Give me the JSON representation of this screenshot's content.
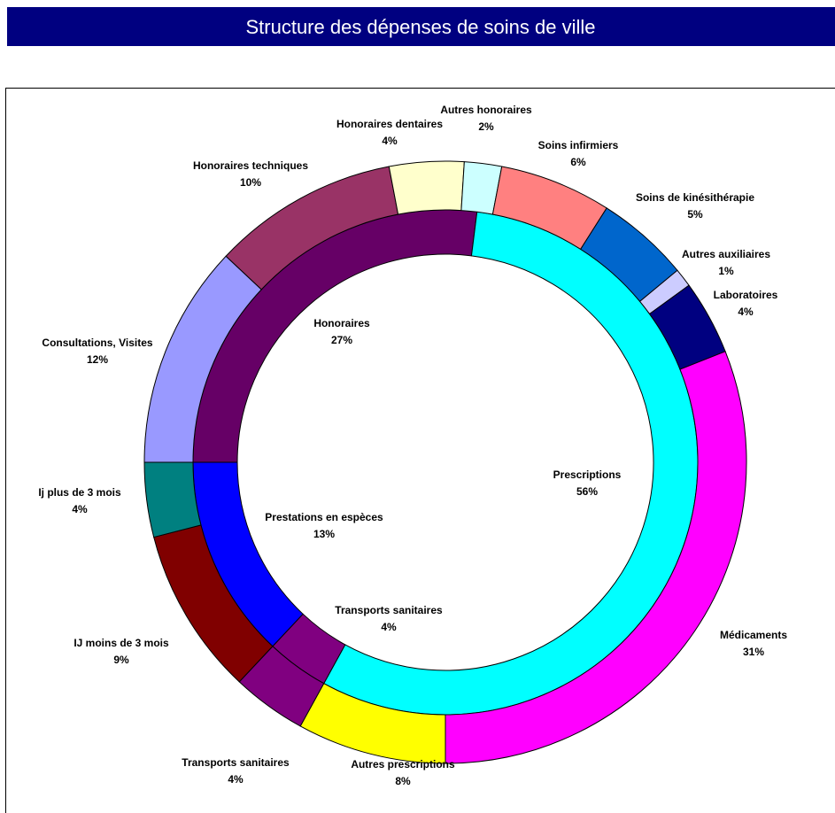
{
  "chart_data": {
    "type": "doughnut",
    "title": "Structure des dépenses de soins de ville",
    "start_angle": 270,
    "rings": [
      {
        "categories": [
          "Honoraires",
          "Prescriptions",
          "Transports sanitaires",
          "Prestations en espèces"
        ],
        "values": [
          27,
          56,
          4,
          13
        ],
        "value_labels": [
          "27%",
          "56%",
          "4%",
          "13%"
        ],
        "colors": [
          "#660066",
          "#00ffff",
          "#800080",
          "#0000ff"
        ]
      },
      {
        "categories": [
          "Consultations, Visites",
          "Honoraires techniques",
          "Honoraires dentaires",
          "Autres honoraires",
          "Soins infirmiers",
          "Soins de kinésithérapie",
          "Autres auxiliaires",
          "Laboratoires",
          "Médicaments",
          "Autres prescriptions",
          "Transports sanitaires",
          "IJ moins de 3 mois",
          "Ij plus de 3 mois"
        ],
        "values": [
          12,
          10,
          4,
          2,
          6,
          5,
          1,
          4,
          31,
          8,
          4,
          9,
          4
        ],
        "value_labels": [
          "12%",
          "10%",
          "4%",
          "2%",
          "6%",
          "5%",
          "1%",
          "4%",
          "31%",
          "8%",
          "4%",
          "9%",
          "4%"
        ],
        "colors": [
          "#9999ff",
          "#993366",
          "#ffffcc",
          "#ccffff",
          "#ff8080",
          "#0066cc",
          "#ccccff",
          "#000080",
          "#ff00ff",
          "#ffff00",
          "#800080",
          "#800000",
          "#008080"
        ]
      }
    ]
  }
}
